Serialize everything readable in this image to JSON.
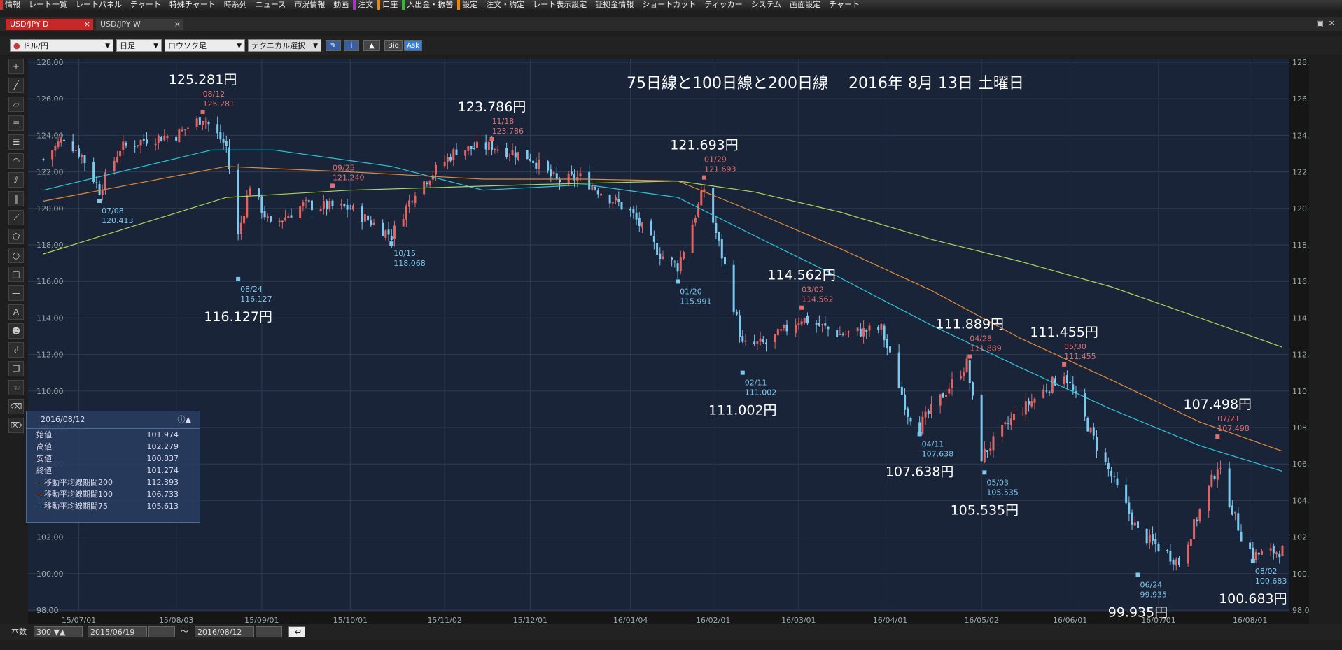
{
  "menu": {
    "items": [
      "情報",
      "レート一覧",
      "レートパネル",
      "チャート",
      "特殊チャート",
      "時系列",
      "ニュース",
      "市況情報",
      "動画",
      "注文",
      "口座",
      "入出金・振替",
      "設定",
      "注文・約定",
      "レート表示設定",
      "証拠金情報",
      "ショートカット",
      "ティッカー",
      "システム",
      "画面設定",
      "チャート"
    ]
  },
  "tabs": [
    {
      "label": "USD/JPY D",
      "close": "×"
    },
    {
      "label": "USD/JPY W",
      "close": "×"
    }
  ],
  "toolbar": {
    "pair": "ドル/円",
    "period": "日足",
    "chart_type": "ロウソク足",
    "technical": "テクニカル選択",
    "bid": "Bid",
    "ask": "Ask"
  },
  "colors": {
    "up": "#e06464",
    "down": "#7cc8ee",
    "ma75": "#2ec4d8",
    "ma100": "#e08a38",
    "ma200": "#a8d65a",
    "bg": "#1a2438",
    "grid": "#2e3b54"
  },
  "chart_data": {
    "type": "candlestick",
    "title": "75日線と100日線と200日線　 2016年 8月 13日 土曜日",
    "ylim": [
      98,
      128
    ],
    "yticks": [
      "98.00",
      "100.00",
      "102.00",
      "104.00",
      "106.00",
      "108.00",
      "110.00",
      "112.00",
      "114.00",
      "116.00",
      "118.00",
      "120.00",
      "122.00",
      "124.00",
      "126.00",
      "128.00"
    ],
    "x_start": "2015-06-19",
    "x_end": "2016-08-12",
    "xticks": [
      {
        "date": "2015-07-01",
        "label": "15/07/01"
      },
      {
        "date": "2015-08-03",
        "label": "15/08/03"
      },
      {
        "date": "2015-09-01",
        "label": "15/09/01"
      },
      {
        "date": "2015-10-01",
        "label": "15/10/01"
      },
      {
        "date": "2015-11-02",
        "label": "15/11/02"
      },
      {
        "date": "2015-12-01",
        "label": "15/12/01"
      },
      {
        "date": "2016-01-04",
        "label": "16/01/04"
      },
      {
        "date": "2016-02-01",
        "label": "16/02/01"
      },
      {
        "date": "2016-03-01",
        "label": "16/03/01"
      },
      {
        "date": "2016-04-01",
        "label": "16/04/01"
      },
      {
        "date": "2016-05-02",
        "label": "16/05/02"
      },
      {
        "date": "2016-06-01",
        "label": "16/06/01"
      },
      {
        "date": "2016-07-01",
        "label": "16/07/01"
      },
      {
        "date": "2016-08-01",
        "label": "16/08/01"
      }
    ],
    "close_path": [
      [
        "2015-06-19",
        122.7
      ],
      [
        "2015-06-26",
        123.9
      ],
      [
        "2015-07-02",
        122.9
      ],
      [
        "2015-07-08",
        121.0
      ],
      [
        "2015-07-15",
        123.3
      ],
      [
        "2015-07-24",
        123.8
      ],
      [
        "2015-08-03",
        124.0
      ],
      [
        "2015-08-12",
        125.0
      ],
      [
        "2015-08-20",
        123.4
      ],
      [
        "2015-08-24",
        118.5
      ],
      [
        "2015-08-28",
        121.3
      ],
      [
        "2015-09-04",
        119.0
      ],
      [
        "2015-09-15",
        120.2
      ],
      [
        "2015-10-01",
        120.0
      ],
      [
        "2015-10-15",
        118.5
      ],
      [
        "2015-10-23",
        121.0
      ],
      [
        "2015-11-06",
        123.2
      ],
      [
        "2015-11-18",
        123.4
      ],
      [
        "2015-12-01",
        122.8
      ],
      [
        "2015-12-10",
        121.5
      ],
      [
        "2015-12-18",
        121.7
      ],
      [
        "2016-01-04",
        119.8
      ],
      [
        "2016-01-14",
        117.5
      ],
      [
        "2016-01-20",
        116.8
      ],
      [
        "2016-01-29",
        121.1
      ],
      [
        "2016-02-05",
        116.8
      ],
      [
        "2016-02-11",
        112.5
      ],
      [
        "2016-02-19",
        112.6
      ],
      [
        "2016-03-02",
        114.0
      ],
      [
        "2016-03-15",
        113.1
      ],
      [
        "2016-03-29",
        113.4
      ],
      [
        "2016-04-07",
        108.8
      ],
      [
        "2016-04-11",
        108.1
      ],
      [
        "2016-04-27",
        111.5
      ],
      [
        "2016-05-02",
        106.4
      ],
      [
        "2016-05-13",
        108.6
      ],
      [
        "2016-05-30",
        111.0
      ],
      [
        "2016-06-10",
        107.0
      ],
      [
        "2016-06-24",
        102.3
      ],
      [
        "2016-07-08",
        100.6
      ],
      [
        "2016-07-21",
        105.9
      ],
      [
        "2016-07-29",
        102.1
      ],
      [
        "2016-08-02",
        101.0
      ],
      [
        "2016-08-12",
        101.27
      ]
    ],
    "series": [
      {
        "name": "移動平均線期間75",
        "points": [
          [
            "2015-06-19",
            121.0
          ],
          [
            "2015-08-15",
            123.2
          ],
          [
            "2015-09-05",
            123.2
          ],
          [
            "2015-10-15",
            122.3
          ],
          [
            "2015-11-15",
            121.0
          ],
          [
            "2015-12-20",
            121.3
          ],
          [
            "2016-01-20",
            120.6
          ],
          [
            "2016-02-15",
            118.5
          ],
          [
            "2016-03-15",
            116.2
          ],
          [
            "2016-04-15",
            113.6
          ],
          [
            "2016-05-15",
            111.3
          ],
          [
            "2016-06-15",
            109.0
          ],
          [
            "2016-07-15",
            107.0
          ],
          [
            "2016-08-12",
            105.6
          ]
        ]
      },
      {
        "name": "移動平均線期間100",
        "points": [
          [
            "2015-06-19",
            120.4
          ],
          [
            "2015-08-20",
            122.3
          ],
          [
            "2015-10-01",
            122.0
          ],
          [
            "2015-11-15",
            121.6
          ],
          [
            "2015-12-20",
            121.6
          ],
          [
            "2016-01-20",
            121.5
          ],
          [
            "2016-02-15",
            119.8
          ],
          [
            "2016-03-15",
            117.8
          ],
          [
            "2016-04-15",
            115.5
          ],
          [
            "2016-05-15",
            112.9
          ],
          [
            "2016-06-15",
            110.6
          ],
          [
            "2016-07-15",
            108.3
          ],
          [
            "2016-08-12",
            106.7
          ]
        ]
      },
      {
        "name": "移動平均線期間200",
        "points": [
          [
            "2015-06-19",
            117.5
          ],
          [
            "2015-08-20",
            120.6
          ],
          [
            "2015-10-01",
            121.0
          ],
          [
            "2015-12-01",
            121.3
          ],
          [
            "2016-01-20",
            121.5
          ],
          [
            "2016-02-15",
            120.9
          ],
          [
            "2016-03-15",
            119.8
          ],
          [
            "2016-04-15",
            118.3
          ],
          [
            "2016-05-15",
            117.1
          ],
          [
            "2016-06-15",
            115.7
          ],
          [
            "2016-07-15",
            114.0
          ],
          [
            "2016-08-12",
            112.4
          ]
        ]
      }
    ],
    "hl_annotations": [
      {
        "date": "2015-07-08",
        "price": 120.413,
        "date_label": "07/08",
        "value_label": "120.413",
        "kind": "low"
      },
      {
        "date": "2015-08-12",
        "price": 125.281,
        "date_label": "08/12",
        "value_label": "125.281",
        "kind": "high"
      },
      {
        "date": "2015-08-24",
        "price": 116.127,
        "date_label": "08/24",
        "value_label": "116.127",
        "kind": "low"
      },
      {
        "date": "2015-09-25",
        "price": 121.24,
        "date_label": "09/25",
        "value_label": "121.240",
        "kind": "high"
      },
      {
        "date": "2015-10-15",
        "price": 118.068,
        "date_label": "10/15",
        "value_label": "118.068",
        "kind": "low"
      },
      {
        "date": "2015-11-18",
        "price": 123.786,
        "date_label": "11/18",
        "value_label": "123.786",
        "kind": "high"
      },
      {
        "date": "2016-01-20",
        "price": 115.991,
        "date_label": "01/20",
        "value_label": "115.991",
        "kind": "low"
      },
      {
        "date": "2016-01-29",
        "price": 121.693,
        "date_label": "01/29",
        "value_label": "121.693",
        "kind": "high"
      },
      {
        "date": "2016-02-11",
        "price": 111.002,
        "date_label": "02/11",
        "value_label": "111.002",
        "kind": "low"
      },
      {
        "date": "2016-03-02",
        "price": 114.562,
        "date_label": "03/02",
        "value_label": "114.562",
        "kind": "high"
      },
      {
        "date": "2016-04-11",
        "price": 107.638,
        "date_label": "04/11",
        "value_label": "107.638",
        "kind": "low"
      },
      {
        "date": "2016-04-28",
        "price": 111.889,
        "date_label": "04/28",
        "value_label": "111.889",
        "kind": "high"
      },
      {
        "date": "2016-05-03",
        "price": 105.535,
        "date_label": "05/03",
        "value_label": "105.535",
        "kind": "low"
      },
      {
        "date": "2016-05-30",
        "price": 111.455,
        "date_label": "05/30",
        "value_label": "111.455",
        "kind": "high"
      },
      {
        "date": "2016-06-24",
        "price": 99.935,
        "date_label": "06/24",
        "value_label": "99.935",
        "kind": "low"
      },
      {
        "date": "2016-07-21",
        "price": 107.498,
        "date_label": "07/21",
        "value_label": "107.498",
        "kind": "high"
      },
      {
        "date": "2016-08-02",
        "price": 100.683,
        "date_label": "08/02",
        "value_label": "100.683",
        "kind": "low"
      }
    ],
    "big_labels": [
      {
        "text": "125.281円",
        "date": "2015-08-12",
        "price": 125.281,
        "pos": "above"
      },
      {
        "text": "116.127円",
        "date": "2015-08-24",
        "price": 116.127,
        "pos": "below"
      },
      {
        "text": "123.786円",
        "date": "2015-11-18",
        "price": 123.786,
        "pos": "above"
      },
      {
        "text": "121.693円",
        "date": "2016-01-29",
        "price": 121.693,
        "pos": "above"
      },
      {
        "text": "114.562円",
        "date": "2016-03-02",
        "price": 114.562,
        "pos": "above"
      },
      {
        "text": "111.002円",
        "date": "2016-02-11",
        "price": 111.002,
        "pos": "below"
      },
      {
        "text": "111.889円",
        "date": "2016-04-28",
        "price": 111.889,
        "pos": "above"
      },
      {
        "text": "111.455円",
        "date": "2016-05-30",
        "price": 111.455,
        "pos": "above"
      },
      {
        "text": "107.638円",
        "date": "2016-04-11",
        "price": 107.638,
        "pos": "below"
      },
      {
        "text": "105.535円",
        "date": "2016-05-03",
        "price": 105.535,
        "pos": "below"
      },
      {
        "text": "107.498円",
        "date": "2016-07-21",
        "price": 107.498,
        "pos": "above"
      },
      {
        "text": "99.935円",
        "date": "2016-06-24",
        "price": 99.935,
        "pos": "below"
      },
      {
        "text": "100.683円",
        "date": "2016-08-02",
        "price": 100.683,
        "pos": "below"
      }
    ]
  },
  "info_panel": {
    "date": "2016/08/12",
    "rows": [
      {
        "label": "始値",
        "value": "101.974"
      },
      {
        "label": "高値",
        "value": "102.279"
      },
      {
        "label": "安値",
        "value": "100.837"
      },
      {
        "label": "終値",
        "value": "101.274"
      },
      {
        "label": "移動平均線期間200",
        "value": "112.393",
        "color": "#a8d65a"
      },
      {
        "label": "移動平均線期間100",
        "value": "106.733",
        "color": "#e08a38"
      },
      {
        "label": "移動平均線期間75",
        "value": "105.613",
        "color": "#2ec4d8"
      }
    ]
  },
  "bottom": {
    "count_label": "本数",
    "count": "300",
    "from": "2015/06/19",
    "tilde": "〜",
    "to": "2016/08/12"
  }
}
